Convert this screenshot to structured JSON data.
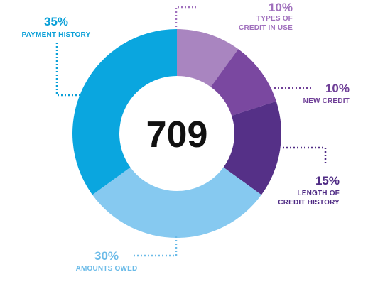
{
  "chart_data": {
    "type": "pie",
    "center_value": "709",
    "slices": [
      {
        "percent": 10,
        "pct_label": "10%",
        "label_lines": [
          "TYPES OF",
          "CREDIT IN USE"
        ],
        "color": "#a985c0",
        "label_color": "#a070bd"
      },
      {
        "percent": 10,
        "pct_label": "10%",
        "label_lines": [
          "NEW CREDIT"
        ],
        "color": "#7a48a0",
        "label_color": "#6f3f97"
      },
      {
        "percent": 15,
        "pct_label": "15%",
        "label_lines": [
          "LENGTH OF",
          "CREDIT HISTORY"
        ],
        "color": "#553087",
        "label_color": "#4f2b84"
      },
      {
        "percent": 30,
        "pct_label": "30%",
        "label_lines": [
          "AMOUNTS OWED"
        ],
        "color": "#86c9f0",
        "label_color": "#6bbbe8"
      },
      {
        "percent": 35,
        "pct_label": "35%",
        "label_lines": [
          "PAYMENT HISTORY"
        ],
        "color": "#0aa6df",
        "label_color": "#0aa0d8"
      }
    ]
  }
}
